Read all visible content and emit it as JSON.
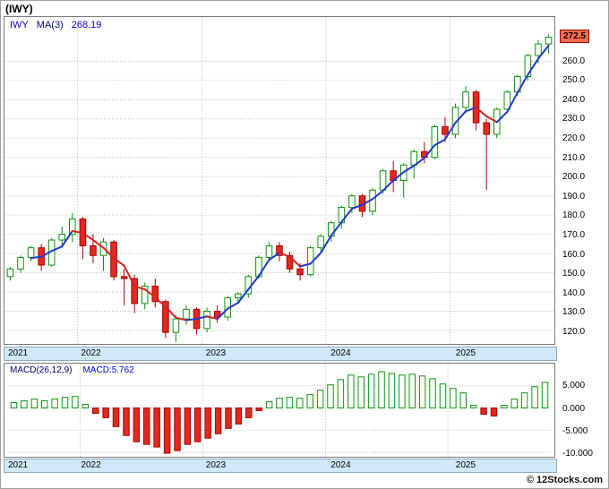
{
  "window": {
    "title": "(IWY)"
  },
  "main_chart": {
    "legend": {
      "symbol": "IWY",
      "ma_label": "MA(3)",
      "ma_value": "268.19"
    },
    "price_badge": "272.5"
  },
  "macd_panel": {
    "legend_label": "MACD(26,12,9)",
    "legend_value": "MACD:5.762"
  },
  "footer": {
    "credit": "© 12Stocks.com"
  },
  "colors": {
    "up": "#0a930a",
    "down": "#aa0000",
    "down_fill": "#e02a20",
    "ma_up": "#2138cc",
    "ma_down": "#d92020",
    "grid": "#b8b8b8",
    "strip_bg": "#cfe9f9",
    "badge_bg": "#ff6d4f",
    "badge_border": "#990000"
  },
  "chart_data": [
    {
      "type": "candlestick",
      "title": "(IWY) monthly price with MA(3) overlay",
      "x": [
        "2021-06",
        "2021-07",
        "2021-08",
        "2021-09",
        "2021-10",
        "2021-11",
        "2021-12",
        "2022-01",
        "2022-02",
        "2022-03",
        "2022-04",
        "2022-05",
        "2022-06",
        "2022-07",
        "2022-08",
        "2022-09",
        "2022-10",
        "2022-11",
        "2022-12",
        "2023-01",
        "2023-02",
        "2023-03",
        "2023-04",
        "2023-05",
        "2023-06",
        "2023-07",
        "2023-08",
        "2023-09",
        "2023-10",
        "2023-11",
        "2023-12",
        "2024-01",
        "2024-02",
        "2024-03",
        "2024-04",
        "2024-05",
        "2024-06",
        "2024-07",
        "2024-08",
        "2024-09",
        "2024-10",
        "2024-11",
        "2024-12",
        "2025-01",
        "2025-02",
        "2025-03",
        "2025-04",
        "2025-05",
        "2025-06",
        "2025-07",
        "2025-08",
        "2025-09",
        "2025-10"
      ],
      "ohlc": [
        [
          148,
          153,
          146,
          152
        ],
        [
          152,
          159,
          150,
          158
        ],
        [
          158,
          164,
          156,
          163
        ],
        [
          163,
          165,
          151,
          154
        ],
        [
          154,
          168,
          153,
          167
        ],
        [
          167,
          174,
          163,
          170
        ],
        [
          170,
          181,
          166,
          178
        ],
        [
          178,
          179,
          157,
          164
        ],
        [
          164,
          170,
          155,
          159
        ],
        [
          159,
          168,
          151,
          166
        ],
        [
          166,
          167,
          146,
          148
        ],
        [
          148,
          152,
          133,
          147
        ],
        [
          147,
          149,
          129,
          134
        ],
        [
          134,
          145,
          131,
          143
        ],
        [
          143,
          147,
          132,
          135
        ],
        [
          135,
          136,
          116,
          119
        ],
        [
          119,
          128,
          114,
          126
        ],
        [
          126,
          133,
          123,
          131
        ],
        [
          131,
          132,
          118,
          121
        ],
        [
          121,
          132,
          119,
          130
        ],
        [
          130,
          133,
          124,
          127
        ],
        [
          127,
          138,
          125,
          137
        ],
        [
          137,
          140,
          134,
          139
        ],
        [
          139,
          149,
          137,
          148
        ],
        [
          148,
          159,
          147,
          158
        ],
        [
          158,
          166,
          156,
          164
        ],
        [
          164,
          166,
          156,
          159
        ],
        [
          159,
          161,
          150,
          152
        ],
        [
          152,
          155,
          146,
          149
        ],
        [
          149,
          164,
          148,
          163
        ],
        [
          163,
          170,
          161,
          169
        ],
        [
          169,
          177,
          166,
          176
        ],
        [
          176,
          185,
          173,
          184
        ],
        [
          184,
          191,
          181,
          190
        ],
        [
          190,
          191,
          179,
          182
        ],
        [
          182,
          194,
          180,
          193
        ],
        [
          193,
          204,
          191,
          203
        ],
        [
          203,
          208,
          192,
          198
        ],
        [
          198,
          207,
          189,
          206
        ],
        [
          206,
          214,
          199,
          213
        ],
        [
          213,
          218,
          207,
          210
        ],
        [
          210,
          227,
          209,
          226
        ],
        [
          226,
          231,
          218,
          222
        ],
        [
          222,
          238,
          220,
          236
        ],
        [
          236,
          247,
          233,
          244
        ],
        [
          244,
          245,
          224,
          228
        ],
        [
          228,
          230,
          193,
          222
        ],
        [
          222,
          236,
          220,
          235
        ],
        [
          235,
          245,
          233,
          244
        ],
        [
          244,
          253,
          242,
          252
        ],
        [
          252,
          264,
          250,
          263
        ],
        [
          263,
          271,
          259,
          269
        ],
        [
          269,
          274,
          264,
          272.5
        ]
      ],
      "overlay": {
        "name": "MA(3)",
        "type": "sma",
        "window": 3,
        "last_value": 268.19
      },
      "last_price": 272.5,
      "ylim": [
        113,
        283
      ],
      "y_ticks": [
        260,
        250,
        240,
        230,
        220,
        210,
        200,
        190,
        180,
        170,
        160,
        150,
        140,
        130,
        120
      ],
      "y_tick_labels": [
        "260.0",
        "250.0",
        "240.0",
        "230.0",
        "220.0",
        "210.0",
        "200.0",
        "190.0",
        "180.0",
        "170.0",
        "160.0",
        "150.0",
        "140.0",
        "130.0",
        "120.0"
      ],
      "year_ticks": {
        "labels": [
          "2021",
          "2022",
          "2023",
          "2024",
          "2025"
        ],
        "indices": [
          0,
          7,
          19,
          31,
          43
        ]
      },
      "grid": true,
      "legend_position": "top-left"
    },
    {
      "type": "bar",
      "title": "MACD(26,12,9)",
      "x": [
        "2021-06",
        "2021-07",
        "2021-08",
        "2021-09",
        "2021-10",
        "2021-11",
        "2021-12",
        "2022-01",
        "2022-02",
        "2022-03",
        "2022-04",
        "2022-05",
        "2022-06",
        "2022-07",
        "2022-08",
        "2022-09",
        "2022-10",
        "2022-11",
        "2022-12",
        "2023-01",
        "2023-02",
        "2023-03",
        "2023-04",
        "2023-05",
        "2023-06",
        "2023-07",
        "2023-08",
        "2023-09",
        "2023-10",
        "2023-11",
        "2023-12",
        "2024-01",
        "2024-02",
        "2024-03",
        "2024-04",
        "2024-05",
        "2024-06",
        "2024-07",
        "2024-08",
        "2024-09",
        "2024-10",
        "2024-11",
        "2024-12",
        "2025-01",
        "2025-02",
        "2025-03",
        "2025-04",
        "2025-05",
        "2025-06",
        "2025-07",
        "2025-08",
        "2025-09",
        "2025-10"
      ],
      "values": [
        1.2,
        1.6,
        2.0,
        1.6,
        2.0,
        2.4,
        2.6,
        0.8,
        -1.2,
        -2.2,
        -4.2,
        -6.2,
        -7.6,
        -8.2,
        -8.8,
        -10.2,
        -9.6,
        -8.2,
        -7.6,
        -6.8,
        -5.8,
        -4.6,
        -3.6,
        -2.2,
        -0.6,
        1.4,
        2.2,
        2.4,
        2.2,
        3.0,
        4.0,
        5.2,
        6.4,
        7.4,
        7.0,
        7.6,
        8.2,
        7.8,
        7.4,
        7.6,
        7.2,
        6.6,
        5.4,
        4.4,
        3.4,
        0.6,
        -1.4,
        -1.8,
        0.6,
        2.0,
        3.4,
        4.8,
        5.762
      ],
      "last_value": 5.762,
      "ylim": [
        -11,
        10
      ],
      "y_ticks": [
        5,
        0,
        -5,
        -10
      ],
      "y_tick_labels": [
        "5.000",
        "0.000",
        "-5.000",
        "-10.000"
      ],
      "year_ticks": {
        "labels": [
          "2021",
          "2022",
          "2023",
          "2024",
          "2025"
        ],
        "indices": [
          0,
          7,
          19,
          31,
          43
        ]
      },
      "grid": true,
      "legend_position": "top-left"
    }
  ]
}
